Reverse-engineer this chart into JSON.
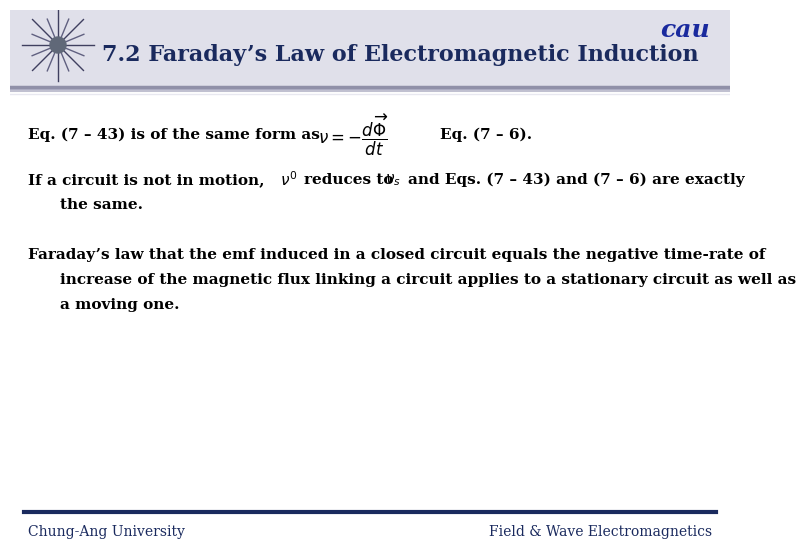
{
  "title": "7.2 Faraday’s Law of Electromagnetic Induction",
  "title_color": "#1a2a5e",
  "bg_color": "#ffffff",
  "header_bg": "#d8d8e8",
  "footer_bar_color": "#1a2a5e",
  "footer_left": "Chung-Ang University",
  "footer_right": "Field & Wave Electromagnetics",
  "footer_fontsize": 10,
  "title_fontsize": 16,
  "body_fontsize": 11,
  "line1_text1": "Eq. (7 – 43) is of the same form as",
  "line1_eq": "$\\nu = -\\dfrac{d\\overrightarrow{\\Phi}}{dt}$",
  "line1_text2": "Eq. (7 – 6).",
  "line2_text1": "If a circuit is not in motion,",
  "line2_italic": "$\\nu'$",
  "line2_text2": "reduces to",
  "line2_sub": "$\\nu_s$",
  "line2_text3": "and Eqs. (7 – 43) and (7 – 6) are exactly",
  "line2_text4": "the same.",
  "para_text1": "Faraday’s law that the emf induced in a closed circuit equals the negative time-rate of",
  "para_text2": "increase of the magnetic flux linking a circuit applies to a stationary circuit as well as",
  "para_text3": "a moving one."
}
